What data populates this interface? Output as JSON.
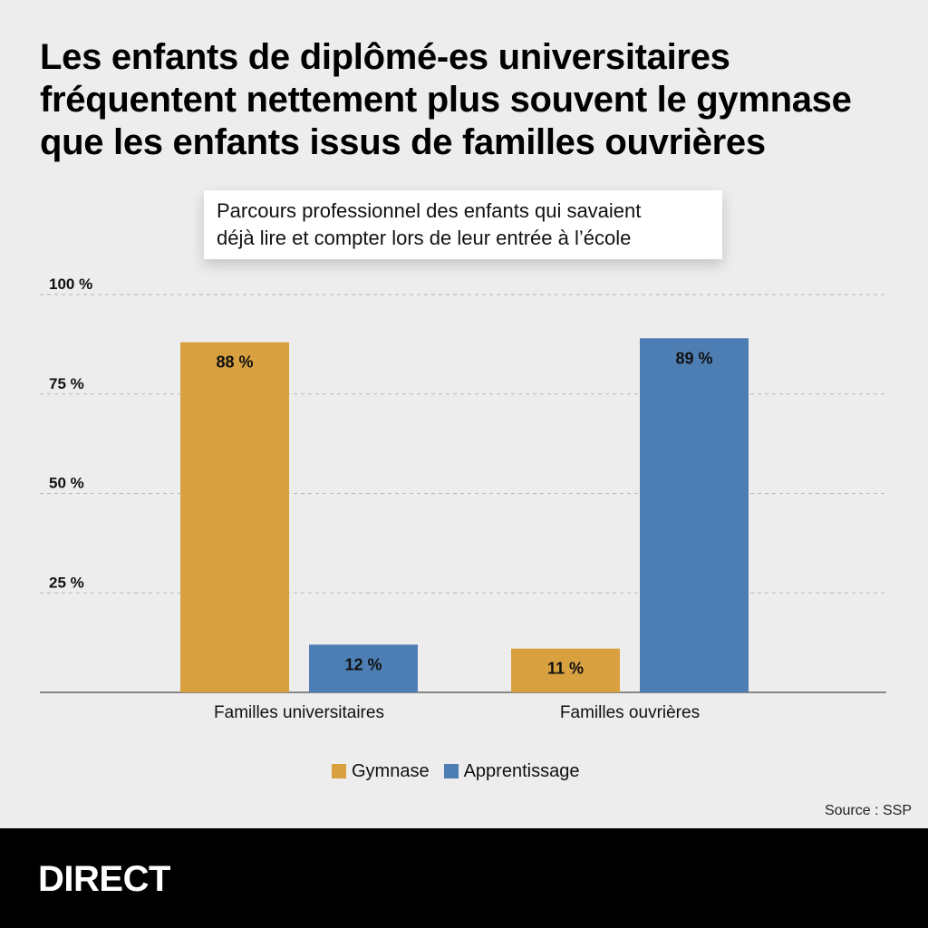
{
  "title_lines": [
    "Les enfants de diplômé-es universitaires",
    "fréquentent nettement plus souvent le gymnase",
    "que les enfants issus de familles ouvrières"
  ],
  "subtitle_lines": [
    "Parcours professionnel des enfants qui savaient",
    "déjà lire et compter lors de leur entrée à l’école"
  ],
  "chart_data": {
    "type": "bar",
    "categories": [
      "Familles universitaires",
      "Familles ouvrières"
    ],
    "series": [
      {
        "name": "Gymnase",
        "values": [
          88,
          11
        ],
        "labels": [
          "88 %",
          "11 %"
        ],
        "color": "#d9a03f"
      },
      {
        "name": "Apprentissage",
        "values": [
          12,
          89
        ],
        "labels": [
          "12 %",
          "89 %"
        ],
        "color": "#4d7eb3"
      }
    ],
    "ylim": [
      0,
      100
    ],
    "yticks": [
      25,
      50,
      75,
      100
    ],
    "ytick_labels": [
      "25 %",
      "50 %",
      "75 %",
      "100 %"
    ],
    "grid": true,
    "legend_position": "bottom"
  },
  "legend": {
    "items": [
      {
        "label": "Gymnase",
        "color": "#d9a03f"
      },
      {
        "label": "Apprentissage",
        "color": "#4d7eb3"
      }
    ]
  },
  "source": "Source : SSP",
  "footer": {
    "brand": "DIRECT"
  }
}
